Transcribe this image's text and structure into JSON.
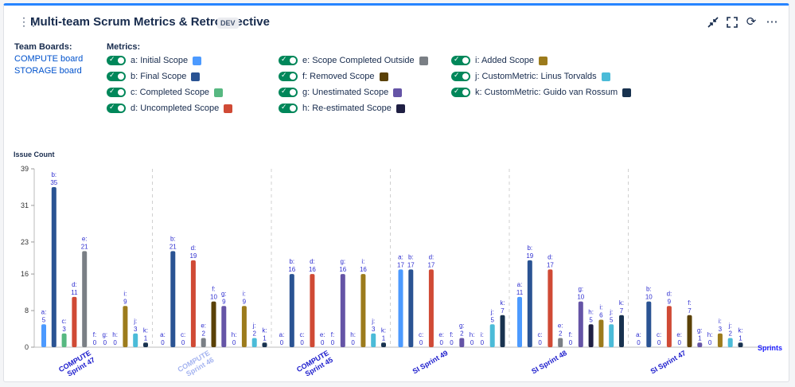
{
  "header": {
    "title": "Multi-team Scrum Metrics & Retrospective",
    "badge": "DEV",
    "icons": [
      "collapse-icon",
      "fullscreen-icon",
      "refresh-icon",
      "more-icon"
    ]
  },
  "team_boards": {
    "label": "Team Boards:",
    "items": [
      "COMPUTE board",
      "STORAGE board"
    ]
  },
  "metrics": {
    "label": "Metrics:",
    "items": [
      {
        "label": "a: Initial Scope",
        "color": "#4c9aff"
      },
      {
        "label": "b: Final Scope",
        "color": "#2a5393"
      },
      {
        "label": "c: Completed Scope",
        "color": "#57b881"
      },
      {
        "label": "d: Uncompleted Scope",
        "color": "#d04a35"
      },
      {
        "label": "e: Scope Completed Outside",
        "color": "#7a7f85"
      },
      {
        "label": "f: Removed Scope",
        "color": "#5a4106"
      },
      {
        "label": "g: Unestimated Scope",
        "color": "#6554a6"
      },
      {
        "label": "h: Re-estimated Scope",
        "color": "#1f1f43"
      },
      {
        "label": "i: Added Scope",
        "color": "#9c7b1c"
      },
      {
        "label": "j: CustomMetric: Linus Torvalds",
        "color": "#4bbbd8"
      },
      {
        "label": "k: CustomMetric: Guido van Rossum",
        "color": "#18324f"
      }
    ]
  },
  "chart_data": {
    "type": "bar",
    "ylabel": "Issue Count",
    "xlabel": "Sprints",
    "ylim": [
      0,
      39
    ],
    "yticks": [
      0,
      8,
      16,
      23,
      31,
      39
    ],
    "series_letters": [
      "a",
      "b",
      "c",
      "d",
      "e",
      "f",
      "g",
      "h",
      "i",
      "j",
      "k"
    ],
    "categories": [
      {
        "line1": "COMPUTE",
        "line2": "Sprint 47",
        "faded": false
      },
      {
        "line1": "COMPUTE",
        "line2": "Sprint 46",
        "faded": true
      },
      {
        "line1": "COMPUTE",
        "line2": "Sprint 45",
        "faded": false
      },
      {
        "line1": "SI Sprint 49",
        "line2": "",
        "faded": false
      },
      {
        "line1": "SI Sprint 48",
        "line2": "",
        "faded": false
      },
      {
        "line1": "SI Sprint 47",
        "line2": "",
        "faded": false
      }
    ],
    "values": [
      [
        5,
        35,
        3,
        11,
        21,
        0,
        0,
        0,
        9,
        3,
        1
      ],
      [
        0,
        21,
        0,
        19,
        2,
        10,
        9,
        0,
        9,
        2,
        1
      ],
      [
        0,
        16,
        0,
        16,
        0,
        0,
        16,
        0,
        16,
        3,
        1
      ],
      [
        17,
        17,
        0,
        17,
        0,
        0,
        2,
        0,
        0,
        5,
        7
      ],
      [
        11,
        19,
        0,
        17,
        2,
        0,
        10,
        5,
        6,
        5,
        7
      ],
      [
        0,
        10,
        0,
        9,
        0,
        7,
        1,
        0,
        3,
        2,
        1
      ]
    ]
  }
}
